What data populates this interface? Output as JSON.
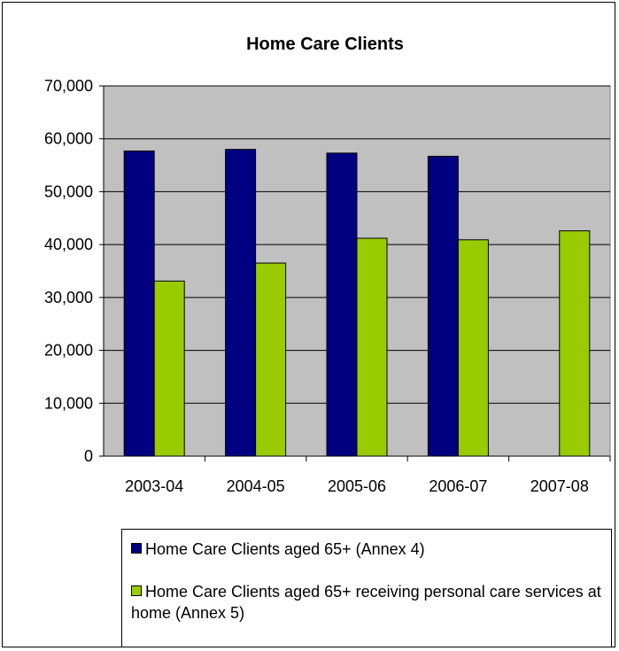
{
  "chart_data": {
    "type": "bar",
    "title": "Home Care Clients",
    "categories": [
      "2003-04",
      "2004-05",
      "2005-06",
      "2006-07",
      "2007-08"
    ],
    "series": [
      {
        "name": "Home Care Clients aged 65+ (Annex 4)",
        "color": "#000080",
        "values": [
          57700,
          58000,
          57300,
          56700,
          null
        ]
      },
      {
        "name": "Home Care Clients aged 65+ receiving personal care services at home  (Annex 5)",
        "color": "#99CC00",
        "values": [
          33100,
          36500,
          41200,
          40900,
          42600
        ]
      }
    ],
    "ylim": [
      0,
      70000
    ],
    "yticks": [
      "0",
      "10,000",
      "20,000",
      "30,000",
      "40,000",
      "50,000",
      "60,000",
      "70,000"
    ],
    "plot_background": "#C0C0C0",
    "gridlines": true,
    "legend_position": "bottom"
  }
}
